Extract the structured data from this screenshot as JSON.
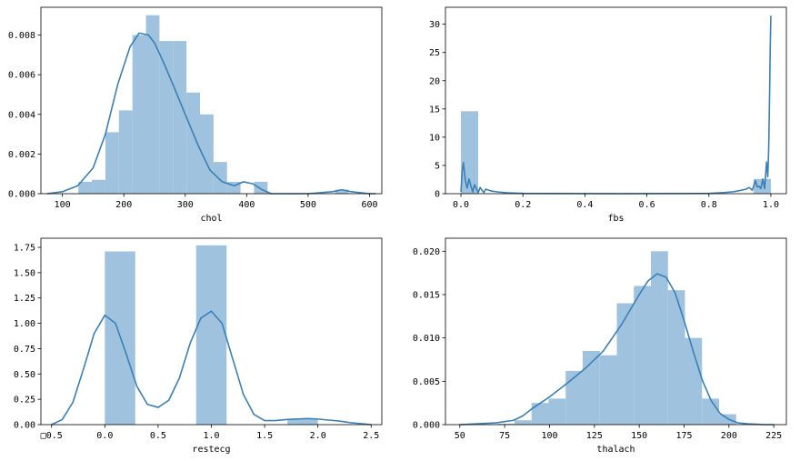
{
  "colors": {
    "bar": "#9fc3df",
    "kde": "#3a7fb5",
    "axis": "#000000"
  },
  "chart_data": [
    {
      "type": "histogram",
      "xlabel": "chol",
      "xlim": [
        65,
        620
      ],
      "ylim": [
        0,
        0.0094
      ],
      "xticks": [
        {
          "v": 100,
          "label": "100"
        },
        {
          "v": 200,
          "label": "200"
        },
        {
          "v": 300,
          "label": "300"
        },
        {
          "v": 400,
          "label": "400"
        },
        {
          "v": 500,
          "label": "500"
        },
        {
          "v": 600,
          "label": "600"
        }
      ],
      "yticks": [
        {
          "v": 0,
          "label": "0.000"
        },
        {
          "v": 0.002,
          "label": "0.002"
        },
        {
          "v": 0.004,
          "label": "0.004"
        },
        {
          "v": 0.006,
          "label": "0.006"
        },
        {
          "v": 0.008,
          "label": "0.008"
        }
      ],
      "bins": [
        {
          "x0": 126,
          "x1": 148,
          "h": 0.0006
        },
        {
          "x0": 148,
          "x1": 170,
          "h": 0.0007
        },
        {
          "x0": 170,
          "x1": 192,
          "h": 0.0031
        },
        {
          "x0": 192,
          "x1": 214,
          "h": 0.0042
        },
        {
          "x0": 214,
          "x1": 236,
          "h": 0.008
        },
        {
          "x0": 236,
          "x1": 258,
          "h": 0.009
        },
        {
          "x0": 258,
          "x1": 280,
          "h": 0.0077
        },
        {
          "x0": 280,
          "x1": 302,
          "h": 0.0077
        },
        {
          "x0": 302,
          "x1": 324,
          "h": 0.0051
        },
        {
          "x0": 324,
          "x1": 346,
          "h": 0.004
        },
        {
          "x0": 346,
          "x1": 368,
          "h": 0.0016
        },
        {
          "x0": 368,
          "x1": 390,
          "h": 0.0006
        },
        {
          "x0": 390,
          "x1": 412,
          "h": 0.0
        },
        {
          "x0": 412,
          "x1": 434,
          "h": 0.0006
        },
        {
          "x0": 544,
          "x1": 566,
          "h": 0.0002
        }
      ],
      "kde": {
        "x": [
          75,
          100,
          125,
          150,
          170,
          190,
          210,
          225,
          240,
          250,
          265,
          280,
          300,
          320,
          340,
          360,
          380,
          395,
          410,
          425,
          440,
          460,
          500,
          540,
          555,
          570,
          600,
          610
        ],
        "y": [
          0.0,
          0.0001,
          0.0004,
          0.0013,
          0.003,
          0.0055,
          0.0074,
          0.0081,
          0.008,
          0.0076,
          0.0066,
          0.0055,
          0.004,
          0.0025,
          0.0012,
          0.0006,
          0.0004,
          0.0006,
          0.0005,
          0.0002,
          0.0,
          0.0,
          0.0,
          0.0001,
          0.0002,
          0.0001,
          0.0,
          0.0
        ]
      }
    },
    {
      "type": "histogram",
      "xlabel": "fbs",
      "xlim": [
        -0.05,
        1.05
      ],
      "ylim": [
        0,
        33
      ],
      "xticks": [
        {
          "v": 0,
          "label": "0.0"
        },
        {
          "v": 0.2,
          "label": "0.2"
        },
        {
          "v": 0.4,
          "label": "0.4"
        },
        {
          "v": 0.6,
          "label": "0.6"
        },
        {
          "v": 0.8,
          "label": "0.8"
        },
        {
          "v": 1.0,
          "label": "1.0"
        }
      ],
      "yticks": [
        {
          "v": 0,
          "label": "0"
        },
        {
          "v": 5,
          "label": "5"
        },
        {
          "v": 10,
          "label": "10"
        },
        {
          "v": 15,
          "label": "15"
        },
        {
          "v": 20,
          "label": "20"
        },
        {
          "v": 25,
          "label": "25"
        },
        {
          "v": 30,
          "label": "30"
        }
      ],
      "bins": [
        {
          "x0": 0.0,
          "x1": 0.0556,
          "h": 14.6
        },
        {
          "x0": 0.9444,
          "x1": 1.0,
          "h": 2.6
        }
      ],
      "kde": {
        "x": [
          0.0,
          0.004,
          0.008,
          0.014,
          0.02,
          0.026,
          0.032,
          0.038,
          0.044,
          0.05,
          0.056,
          0.062,
          0.068,
          0.074,
          0.08,
          0.09,
          0.1,
          0.12,
          0.15,
          0.2,
          0.5,
          0.8,
          0.85,
          0.88,
          0.9,
          0.92,
          0.93,
          0.94,
          0.95,
          0.956,
          0.962,
          0.968,
          0.974,
          0.98,
          0.986,
          0.99,
          0.993,
          0.996,
          0.998,
          1.0
        ],
        "y": [
          0.3,
          4.0,
          5.5,
          2.4,
          1.0,
          2.6,
          1.4,
          0.3,
          1.6,
          0.9,
          0.2,
          1.1,
          0.6,
          0.2,
          0.8,
          0.6,
          0.45,
          0.3,
          0.15,
          0.05,
          0.0,
          0.05,
          0.2,
          0.35,
          0.55,
          0.8,
          1.1,
          0.6,
          2.3,
          1.2,
          1.3,
          0.9,
          2.6,
          0.9,
          5.6,
          3.0,
          8.0,
          18.0,
          26.0,
          31.5
        ]
      }
    },
    {
      "type": "histogram",
      "xlabel": "restecg",
      "xlim": [
        -0.6,
        2.6
      ],
      "ylim": [
        0,
        1.84
      ],
      "xticks": [
        {
          "v": -0.5,
          "label": "□0.5"
        },
        {
          "v": 0,
          "label": "0.0"
        },
        {
          "v": 0.5,
          "label": "0.5"
        },
        {
          "v": 1.0,
          "label": "1.0"
        },
        {
          "v": 1.5,
          "label": "1.5"
        },
        {
          "v": 2.0,
          "label": "2.0"
        },
        {
          "v": 2.5,
          "label": "2.5"
        }
      ],
      "yticks": [
        {
          "v": 0,
          "label": "0.00"
        },
        {
          "v": 0.25,
          "label": "0.25"
        },
        {
          "v": 0.5,
          "label": "0.50"
        },
        {
          "v": 0.75,
          "label": "0.75"
        },
        {
          "v": 1.0,
          "label": "1.00"
        },
        {
          "v": 1.25,
          "label": "1.25"
        },
        {
          "v": 1.5,
          "label": "1.50"
        },
        {
          "v": 1.75,
          "label": "1.75"
        }
      ],
      "bins": [
        {
          "x0": 0.0,
          "x1": 0.2857,
          "h": 1.71
        },
        {
          "x0": 0.8571,
          "x1": 1.1429,
          "h": 1.77
        },
        {
          "x0": 1.7143,
          "x1": 2.0,
          "h": 0.06
        }
      ],
      "kde": {
        "x": [
          -0.5,
          -0.4,
          -0.3,
          -0.2,
          -0.1,
          0.0,
          0.1,
          0.2,
          0.3,
          0.4,
          0.5,
          0.6,
          0.7,
          0.8,
          0.9,
          1.0,
          1.1,
          1.2,
          1.3,
          1.4,
          1.5,
          1.6,
          1.7,
          1.8,
          1.9,
          2.0,
          2.1,
          2.2,
          2.3,
          2.4,
          2.5
        ],
        "y": [
          0.0,
          0.05,
          0.22,
          0.55,
          0.9,
          1.08,
          1.0,
          0.7,
          0.38,
          0.2,
          0.17,
          0.24,
          0.46,
          0.8,
          1.05,
          1.12,
          1.0,
          0.65,
          0.3,
          0.1,
          0.04,
          0.04,
          0.05,
          0.055,
          0.06,
          0.055,
          0.045,
          0.035,
          0.02,
          0.01,
          0.0
        ]
      }
    },
    {
      "type": "histogram",
      "xlabel": "thalach",
      "xlim": [
        42,
        232
      ],
      "ylim": [
        0,
        0.0215
      ],
      "xticks": [
        {
          "v": 50,
          "label": "50"
        },
        {
          "v": 75,
          "label": "75"
        },
        {
          "v": 100,
          "label": "100"
        },
        {
          "v": 125,
          "label": "125"
        },
        {
          "v": 150,
          "label": "150"
        },
        {
          "v": 175,
          "label": "175"
        },
        {
          "v": 200,
          "label": "200"
        },
        {
          "v": 225,
          "label": "225"
        }
      ],
      "yticks": [
        {
          "v": 0,
          "label": "0.000"
        },
        {
          "v": 0.005,
          "label": "0.005"
        },
        {
          "v": 0.01,
          "label": "0.010"
        },
        {
          "v": 0.015,
          "label": "0.015"
        },
        {
          "v": 0.02,
          "label": "0.020"
        }
      ],
      "bins": [
        {
          "x0": 71,
          "x1": 80.5,
          "h": 0.0001
        },
        {
          "x0": 80.5,
          "x1": 90,
          "h": 0.0005
        },
        {
          "x0": 90,
          "x1": 99.5,
          "h": 0.0025
        },
        {
          "x0": 99.5,
          "x1": 109,
          "h": 0.003
        },
        {
          "x0": 109,
          "x1": 118.5,
          "h": 0.0062
        },
        {
          "x0": 118.5,
          "x1": 128,
          "h": 0.0085
        },
        {
          "x0": 128,
          "x1": 137.5,
          "h": 0.008
        },
        {
          "x0": 137.5,
          "x1": 147,
          "h": 0.014
        },
        {
          "x0": 147,
          "x1": 156.5,
          "h": 0.016
        },
        {
          "x0": 156.5,
          "x1": 166,
          "h": 0.02
        },
        {
          "x0": 166,
          "x1": 175.5,
          "h": 0.0155
        },
        {
          "x0": 175.5,
          "x1": 185,
          "h": 0.01
        },
        {
          "x0": 185,
          "x1": 194.5,
          "h": 0.003
        },
        {
          "x0": 194.5,
          "x1": 204,
          "h": 0.0012
        }
      ],
      "kde": {
        "x": [
          50,
          60,
          70,
          80,
          85,
          90,
          95,
          100,
          110,
          120,
          130,
          140,
          150,
          155,
          160,
          165,
          170,
          175,
          180,
          185,
          190,
          195,
          200,
          205,
          210,
          220,
          225
        ],
        "y": [
          0.0,
          0.0001,
          0.0002,
          0.0005,
          0.001,
          0.0018,
          0.0025,
          0.0032,
          0.0048,
          0.0065,
          0.0085,
          0.0115,
          0.015,
          0.0166,
          0.0174,
          0.017,
          0.0152,
          0.012,
          0.0085,
          0.0052,
          0.0028,
          0.0013,
          0.0006,
          0.0002,
          0.0001,
          0.0,
          0.0
        ]
      }
    }
  ]
}
